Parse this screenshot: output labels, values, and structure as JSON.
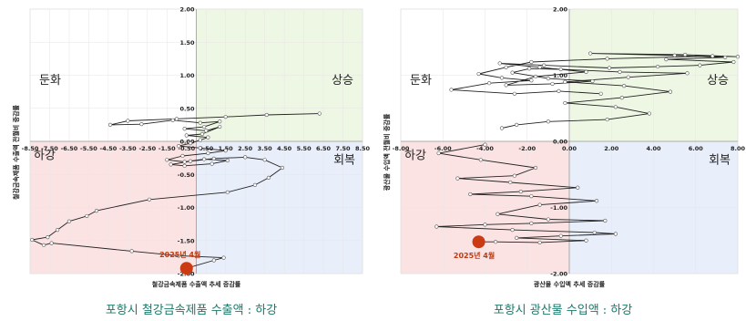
{
  "chart_data": [
    {
      "type": "scatter",
      "title": "",
      "caption": "포항시 철강금속제품 수출액 : 하강",
      "xlabel": "철강금속제품 수출액 추세 증감률",
      "ylabel": "철강금속제품 수출액 전월비 증감률",
      "xlim": [
        -8.5,
        8.5
      ],
      "ylim": [
        -2.0,
        2.0
      ],
      "xticks": [
        "-8.50",
        "-7.50",
        "-6.50",
        "-5.50",
        "-4.50",
        "-3.50",
        "-2.50",
        "-1.50",
        "-0.50",
        "0.50",
        "1.50",
        "2.50",
        "3.50",
        "4.50",
        "5.50",
        "6.50",
        "7.50",
        "8.50"
      ],
      "yticks": [
        "2.00",
        "1.50",
        "1.00",
        "0.50",
        "0.00",
        "-0.50",
        "-1.00",
        "-1.50",
        "-2.00"
      ],
      "quadrants": {
        "top_left": "둔화",
        "top_right": "상승",
        "bottom_left": "하강",
        "bottom_right": "회복"
      },
      "quadrant_colors": {
        "top_left": "#ffffff",
        "top_right": "#eef7e4",
        "bottom_left": "#fbe3e3",
        "bottom_right": "#e8eefa"
      },
      "line_color": "#222222",
      "highlight": {
        "label": "2025년 4월",
        "x": -0.5,
        "y": -1.92,
        "color": "#cc3a12"
      },
      "series": [
        {
          "values": [
            [
              6.3,
              0.42
            ],
            [
              3.6,
              0.4
            ],
            [
              1.5,
              0.37
            ],
            [
              -1.0,
              0.34
            ],
            [
              -3.5,
              0.31
            ],
            [
              -4.4,
              0.25
            ],
            [
              -2.8,
              0.26
            ],
            [
              -1.2,
              0.32
            ],
            [
              0.2,
              0.28
            ],
            [
              1.2,
              0.3
            ],
            [
              0.4,
              0.22
            ],
            [
              -0.6,
              0.19
            ],
            [
              0.5,
              0.16
            ],
            [
              1.2,
              0.22
            ],
            [
              0.3,
              0.11
            ],
            [
              -0.5,
              0.09
            ],
            [
              0.6,
              0.06
            ],
            [
              0.2,
              0.02
            ],
            [
              -0.3,
              -0.03
            ],
            [
              -0.9,
              -0.07
            ],
            [
              0.2,
              -0.1
            ],
            [
              1.5,
              -0.14
            ],
            [
              0.6,
              -0.18
            ],
            [
              -0.7,
              -0.22
            ],
            [
              -1.5,
              -0.28
            ],
            [
              -0.6,
              -0.31
            ],
            [
              0.4,
              -0.27
            ],
            [
              1.6,
              -0.29
            ],
            [
              0.8,
              -0.34
            ],
            [
              -0.6,
              -0.37
            ],
            [
              -1.3,
              -0.35
            ],
            [
              -0.3,
              -0.3
            ],
            [
              0.9,
              -0.26
            ],
            [
              2.5,
              -0.24
            ],
            [
              3.5,
              -0.28
            ],
            [
              4.4,
              -0.4
            ],
            [
              3.7,
              -0.55
            ],
            [
              3.0,
              -0.66
            ],
            [
              1.6,
              -0.77
            ],
            [
              -2.4,
              -0.88
            ],
            [
              -5.1,
              -1.05
            ],
            [
              -5.6,
              -1.13
            ],
            [
              -6.5,
              -1.21
            ],
            [
              -7.1,
              -1.34
            ],
            [
              -7.6,
              -1.45
            ],
            [
              -8.4,
              -1.49
            ],
            [
              -7.8,
              -1.57
            ],
            [
              -7.4,
              -1.54
            ],
            [
              -3.3,
              -1.66
            ],
            [
              -0.9,
              -1.73
            ],
            [
              1.4,
              -1.76
            ],
            [
              0.9,
              -1.8
            ],
            [
              -0.5,
              -1.92
            ]
          ]
        }
      ]
    },
    {
      "type": "scatter",
      "title": "",
      "caption": "포항시 광산물 수입액 : 하강",
      "xlabel": "광산물 수입액 추세 증감률",
      "ylabel": "광산물 수입액 전월비 증감률",
      "xlim": [
        -8.0,
        8.0
      ],
      "ylim": [
        -2.0,
        2.0
      ],
      "xticks": [
        "-8.00",
        "-6.00",
        "-4.00",
        "-2.00",
        "0.00",
        "2.00",
        "4.00",
        "6.00",
        "8.00"
      ],
      "yticks": [
        "2.00",
        "1.00",
        "0.00",
        "-1.00",
        "-2.00"
      ],
      "quadrants": {
        "top_left": "둔화",
        "top_right": "상승",
        "bottom_left": "하강",
        "bottom_right": "회복"
      },
      "quadrant_colors": {
        "top_left": "#ffffff",
        "top_right": "#eef7e4",
        "bottom_left": "#fbe3e3",
        "bottom_right": "#e8eefa"
      },
      "line_color": "#222222",
      "highlight": {
        "label": "2025년 4월",
        "x": -4.3,
        "y": -1.52,
        "color": "#cc3a12"
      },
      "series": [
        {
          "values": [
            [
              -3.2,
              0.2
            ],
            [
              -2.5,
              0.25
            ],
            [
              -1.0,
              0.3
            ],
            [
              1.8,
              0.33
            ],
            [
              3.8,
              0.42
            ],
            [
              2.2,
              0.52
            ],
            [
              -0.2,
              0.58
            ],
            [
              2.5,
              0.66
            ],
            [
              4.8,
              0.75
            ],
            [
              2.6,
              0.84
            ],
            [
              -0.2,
              0.9
            ],
            [
              2.8,
              0.97
            ],
            [
              5.6,
              1.03
            ],
            [
              2.4,
              1.05
            ],
            [
              -0.4,
              1.09
            ],
            [
              -1.9,
              1.1
            ],
            [
              -2.7,
              1.04
            ],
            [
              -1.0,
              0.95
            ],
            [
              1.1,
              0.91
            ],
            [
              -0.8,
              0.87
            ],
            [
              -3.0,
              0.85
            ],
            [
              -1.6,
              0.98
            ],
            [
              0.8,
              1.05
            ],
            [
              -1.4,
              1.12
            ],
            [
              -3.3,
              1.18
            ],
            [
              -1.2,
              1.15
            ],
            [
              1.9,
              1.11
            ],
            [
              4.2,
              1.13
            ],
            [
              6.2,
              1.15
            ],
            [
              7.8,
              1.2
            ],
            [
              4.6,
              1.24
            ],
            [
              7.4,
              1.27
            ],
            [
              5.0,
              1.3
            ],
            [
              1.0,
              1.33
            ],
            [
              5.5,
              1.31
            ],
            [
              8.0,
              1.28
            ],
            [
              6.8,
              1.29
            ],
            [
              1.8,
              1.25
            ],
            [
              -1.8,
              1.2
            ],
            [
              -3.0,
              1.12
            ],
            [
              -4.3,
              1.02
            ],
            [
              -3.2,
              0.96
            ],
            [
              -1.8,
              0.92
            ],
            [
              -3.8,
              0.88
            ],
            [
              -5.6,
              0.78
            ],
            [
              -2.6,
              0.72
            ],
            [
              -0.5,
              0.76
            ],
            [
              1.5,
              0.72
            ]
          ]
        },
        {
          "values": [
            [
              -4.0,
              -0.05
            ],
            [
              -6.2,
              -0.18
            ],
            [
              -4.2,
              -0.28
            ],
            [
              -1.6,
              -0.4
            ],
            [
              -2.6,
              -0.52
            ],
            [
              -5.3,
              -0.56
            ],
            [
              -2.8,
              -0.62
            ],
            [
              0.4,
              -0.7
            ],
            [
              -2.3,
              -0.76
            ],
            [
              -4.7,
              -0.8
            ],
            [
              -1.8,
              -0.83
            ],
            [
              1.3,
              -0.9
            ],
            [
              -1.4,
              -0.96
            ],
            [
              -3.4,
              -1.1
            ],
            [
              -1.0,
              -1.18
            ],
            [
              1.7,
              -1.2
            ],
            [
              -1.8,
              -1.24
            ],
            [
              -4.0,
              -1.26
            ],
            [
              -6.3,
              -1.29
            ],
            [
              -2.7,
              -1.34
            ],
            [
              1.2,
              -1.38
            ],
            [
              2.2,
              -1.4
            ],
            [
              -0.4,
              -1.43
            ],
            [
              -2.5,
              -1.46
            ],
            [
              0.8,
              -1.5
            ],
            [
              -1.4,
              -1.53
            ],
            [
              -3.5,
              -1.52
            ],
            [
              -4.3,
              -1.52
            ]
          ]
        }
      ]
    }
  ]
}
